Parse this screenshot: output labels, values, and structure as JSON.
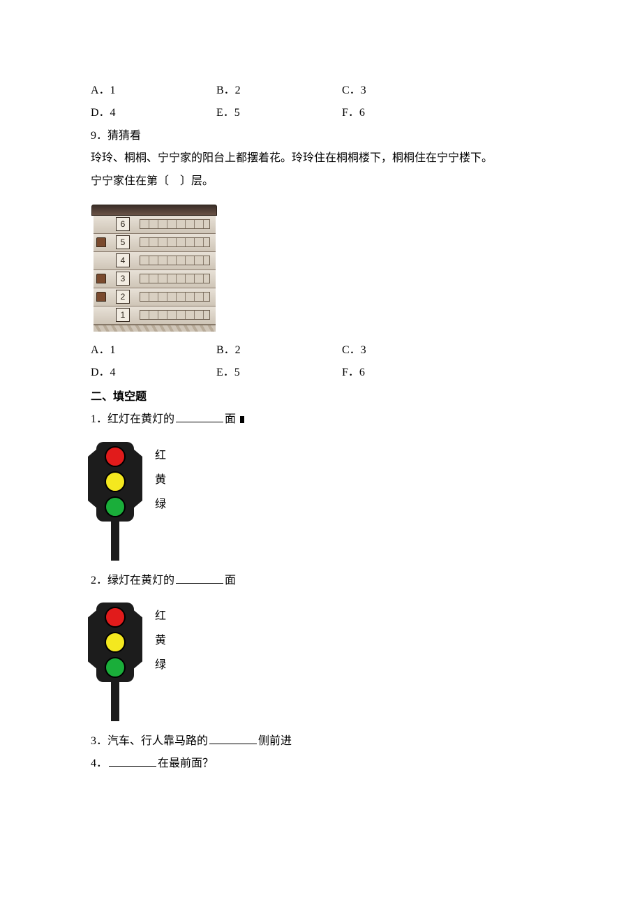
{
  "q_prev_options": {
    "row1": [
      "A．1",
      "B．2",
      "C．3"
    ],
    "row2": [
      "D．4",
      "E．5",
      "F．6"
    ]
  },
  "q9": {
    "number": "9．猜猜看",
    "line1": "玲玲、桐桐、宁宁家的阳台上都摆着花。玲玲住在桐桐楼下，桐桐住在宁宁楼下。",
    "line2_a": "宁宁家住在第〔",
    "line2_b": "〕层。",
    "building": {
      "floors": [
        {
          "num": "6",
          "flower": false
        },
        {
          "num": "5",
          "flower": true
        },
        {
          "num": "4",
          "flower": false
        },
        {
          "num": "3",
          "flower": true
        },
        {
          "num": "2",
          "flower": true
        },
        {
          "num": "1",
          "flower": false
        }
      ]
    },
    "options": {
      "row1": [
        "A．1",
        "B．2",
        "C．3"
      ],
      "row2": [
        "D．4",
        "E．5",
        "F．6"
      ]
    }
  },
  "section2": {
    "heading": "二、填空题",
    "q1_a": "1．红灯在黄灯的",
    "q1_b": "面",
    "q2_a": "2．绿灯在黄灯的",
    "q2_b": "面",
    "q3_a": "3．汽车、行人靠马路的",
    "q3_b": "侧前进",
    "q4_a": "4．",
    "q4_b": "在最前面？",
    "traffic_light": {
      "colors": [
        "#e11b1b",
        "#f4e81f",
        "#1aae3a"
      ],
      "labels": [
        "红",
        "黄",
        "绿"
      ]
    }
  }
}
